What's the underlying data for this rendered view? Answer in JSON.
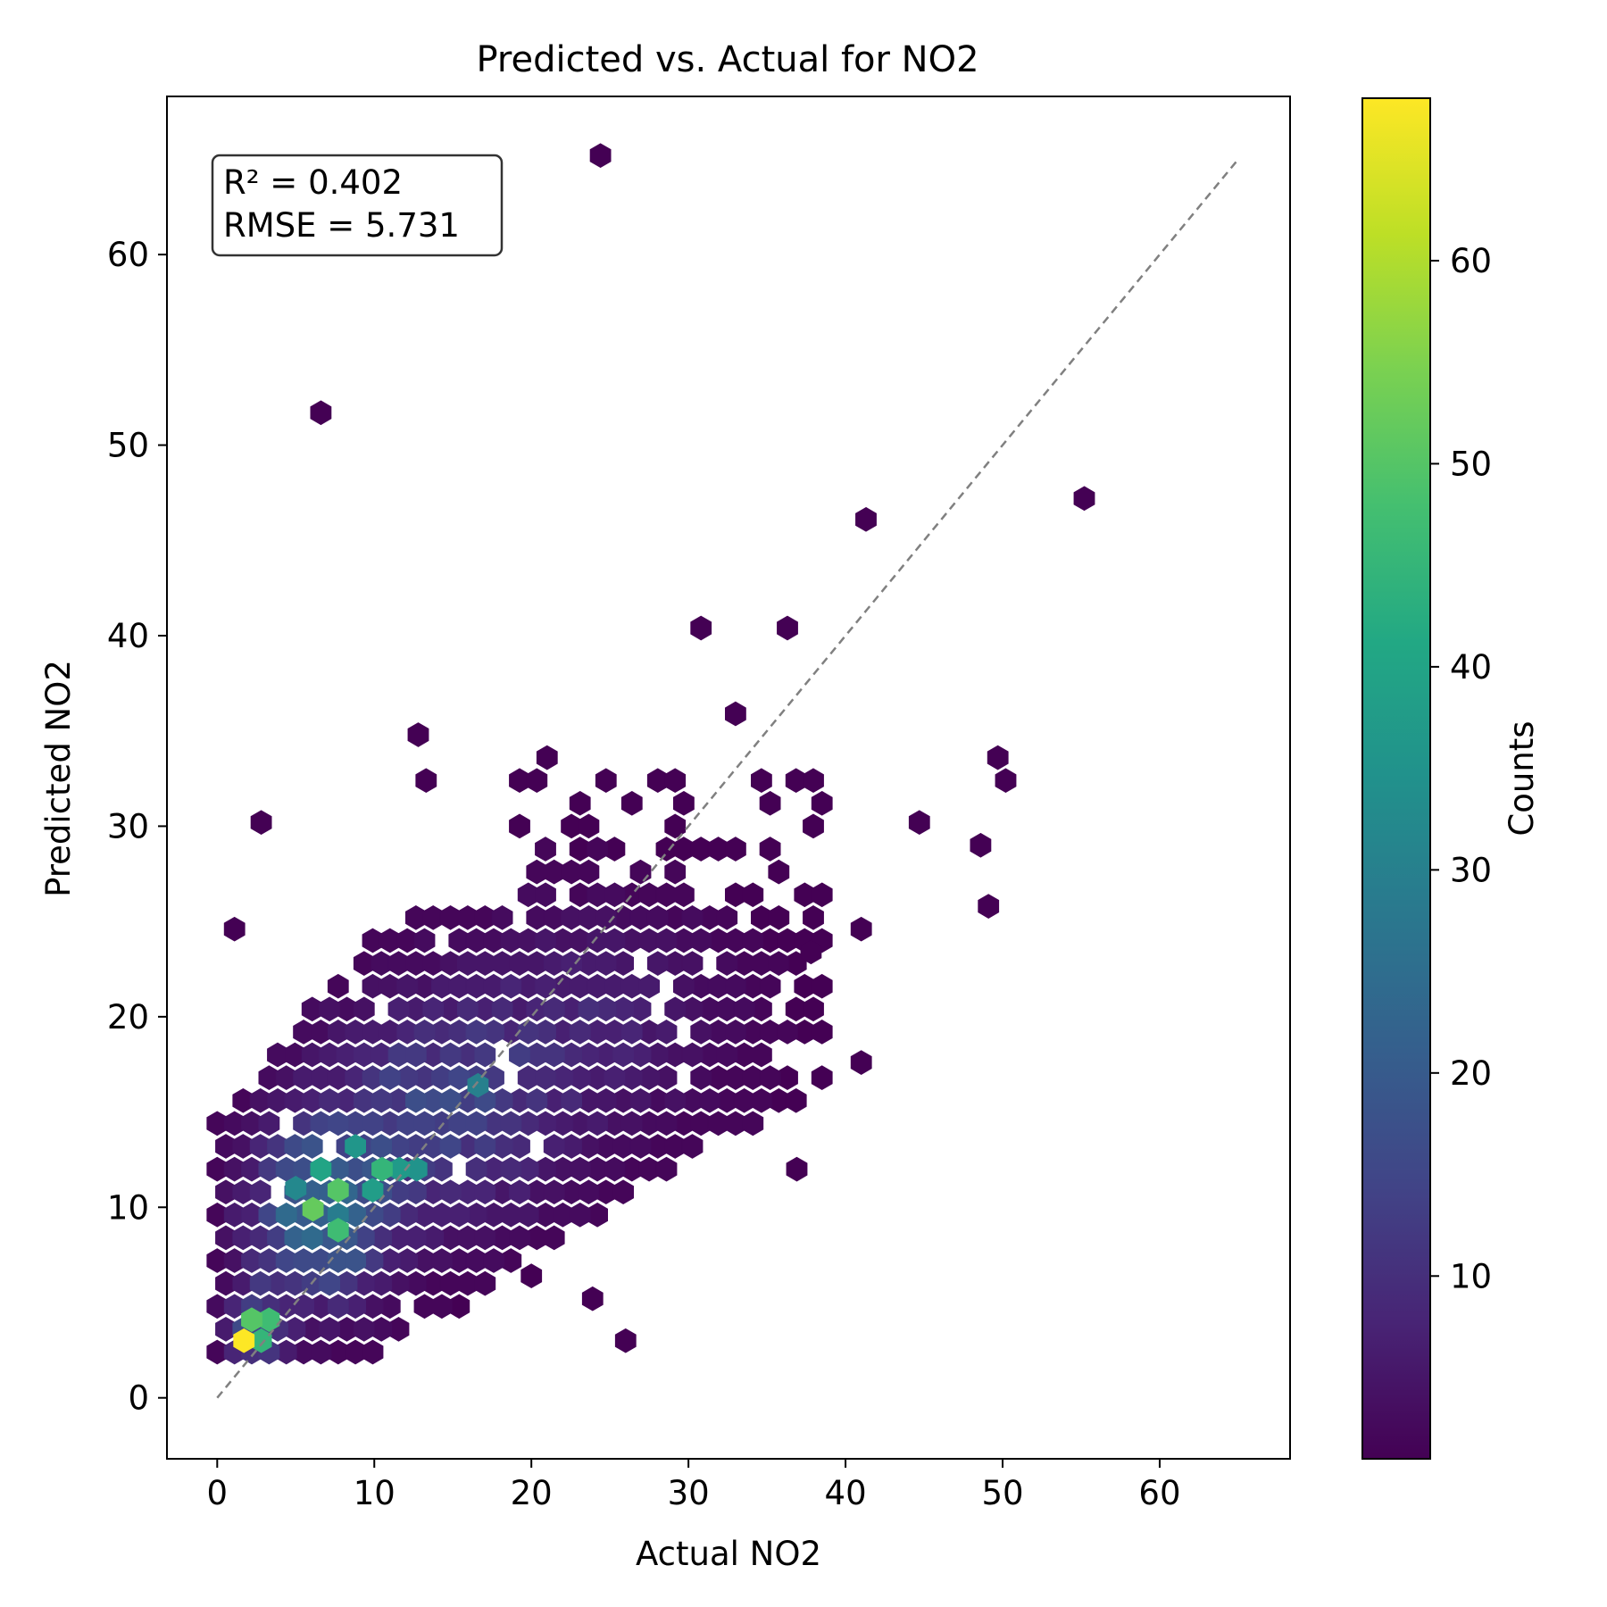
{
  "chart_data": {
    "type": "hexbin",
    "title": "Predicted vs. Actual for NO2",
    "xlabel": "Actual NO2",
    "ylabel": "Predicted NO2",
    "xlim": [
      -3.2,
      68.3
    ],
    "ylim": [
      -3.2,
      68.3
    ],
    "xticks": [
      0,
      10,
      20,
      30,
      40,
      50,
      60
    ],
    "yticks": [
      0,
      10,
      20,
      30,
      40,
      50,
      60
    ],
    "grid": false,
    "stats_box": [
      "R² = 0.402",
      "RMSE = 5.731"
    ],
    "reference_line": {
      "x": [
        0,
        65
      ],
      "y": [
        0,
        65
      ],
      "style": "dashed",
      "color": "#808080"
    },
    "colorbar": {
      "label": "Counts",
      "range": [
        1,
        68
      ],
      "ticks": [
        10,
        20,
        30,
        40,
        50,
        60
      ],
      "colormap": "viridis"
    },
    "outliers": [
      {
        "x": 24.4,
        "y": 65.2,
        "count": 1
      },
      {
        "x": 6.6,
        "y": 51.7,
        "count": 1
      },
      {
        "x": 55.2,
        "y": 47.2,
        "count": 1
      },
      {
        "x": 41.3,
        "y": 46.1,
        "count": 1
      },
      {
        "x": 30.8,
        "y": 40.4,
        "count": 1
      },
      {
        "x": 36.3,
        "y": 40.4,
        "count": 1
      },
      {
        "x": 33.0,
        "y": 35.9,
        "count": 1
      },
      {
        "x": 12.8,
        "y": 34.8,
        "count": 1
      },
      {
        "x": 49.7,
        "y": 33.6,
        "count": 1
      },
      {
        "x": 50.2,
        "y": 32.4,
        "count": 1
      },
      {
        "x": 2.8,
        "y": 30.2,
        "count": 1
      },
      {
        "x": 44.7,
        "y": 30.2,
        "count": 1
      },
      {
        "x": 48.6,
        "y": 29.0,
        "count": 1
      },
      {
        "x": 49.1,
        "y": 25.8,
        "count": 1
      },
      {
        "x": 41.0,
        "y": 24.6,
        "count": 1
      },
      {
        "x": 1.1,
        "y": 24.6,
        "count": 1
      },
      {
        "x": 13.3,
        "y": 32.4,
        "count": 1
      },
      {
        "x": 21.0,
        "y": 33.6,
        "count": 1
      },
      {
        "x": 37.8,
        "y": 23.4,
        "count": 1
      },
      {
        "x": 41.0,
        "y": 17.6,
        "count": 1
      },
      {
        "x": 36.9,
        "y": 12.0,
        "count": 1
      },
      {
        "x": 26.0,
        "y": 3.0,
        "count": 1
      },
      {
        "x": 23.9,
        "y": 5.2,
        "count": 1
      },
      {
        "x": 20.0,
        "y": 6.4,
        "count": 1
      }
    ],
    "density_core": [
      {
        "x": 1.7,
        "y": 3.0,
        "count": 68
      },
      {
        "x": 2.2,
        "y": 4.1,
        "count": 50
      },
      {
        "x": 3.3,
        "y": 4.1,
        "count": 47
      },
      {
        "x": 2.8,
        "y": 3.0,
        "count": 45
      },
      {
        "x": 6.1,
        "y": 9.9,
        "count": 52
      },
      {
        "x": 7.7,
        "y": 10.9,
        "count": 50
      },
      {
        "x": 7.7,
        "y": 8.8,
        "count": 47
      },
      {
        "x": 10.5,
        "y": 12.0,
        "count": 45
      },
      {
        "x": 6.6,
        "y": 12.0,
        "count": 40
      },
      {
        "x": 9.9,
        "y": 10.9,
        "count": 38
      },
      {
        "x": 11.6,
        "y": 12.0,
        "count": 37
      },
      {
        "x": 8.8,
        "y": 13.2,
        "count": 36
      },
      {
        "x": 12.7,
        "y": 12.0,
        "count": 35
      },
      {
        "x": 16.6,
        "y": 16.4,
        "count": 30
      },
      {
        "x": 5.0,
        "y": 11.0,
        "count": 32
      }
    ]
  }
}
